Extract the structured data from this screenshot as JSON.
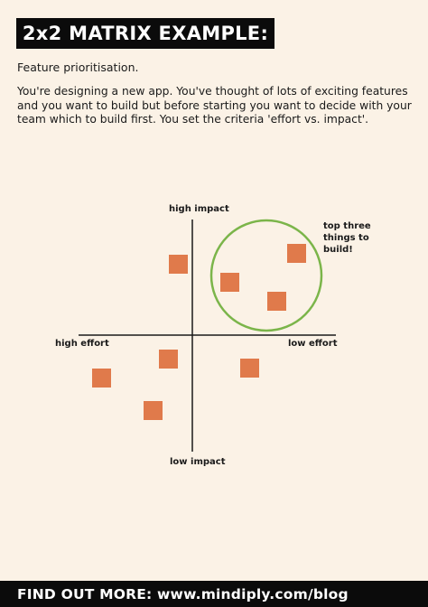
{
  "title": "2x2 MATRIX EXAMPLE:",
  "subtitle": "Feature prioritisation.",
  "paragraph": "You're designing a new app. You've thought of lots of exciting features and you want to build but before starting you want to decide with your team which to build first. You set the criteria 'effort vs. impact'.",
  "matrix": {
    "top_label": "high impact",
    "bottom_label": "low impact",
    "left_label": "high effort",
    "right_label": "low effort",
    "callout": "top three things to build!",
    "square_color": "#e07a4b",
    "circle_color": "#7bb54a",
    "axis_color": "#1a1a1a"
  },
  "footer": "FIND OUT MORE: www.mindiply.com/blog",
  "colors": {
    "background": "#fbf2e6",
    "banner": "#0b0b0b",
    "banner_text": "#ffffff"
  }
}
